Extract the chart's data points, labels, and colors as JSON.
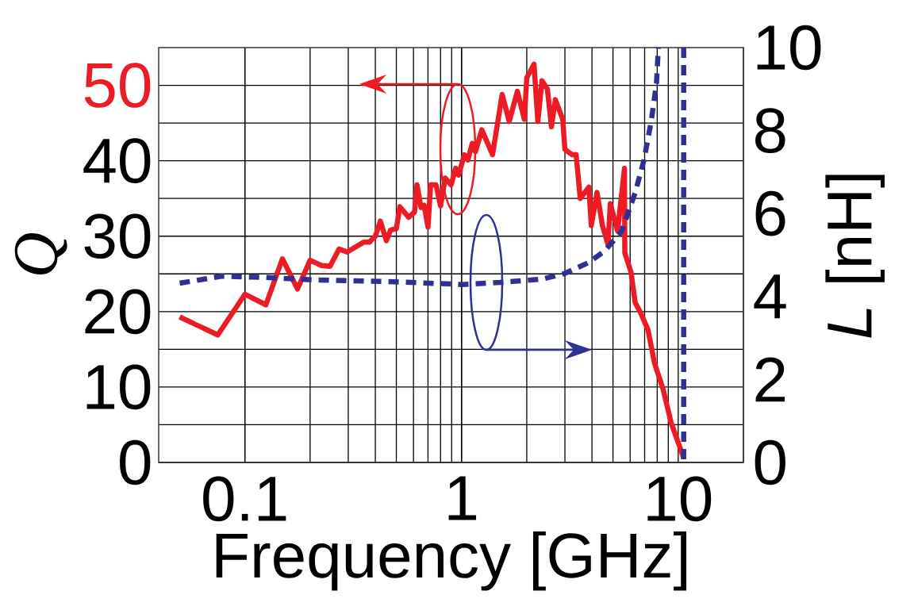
{
  "chart_data": {
    "type": "line",
    "xlabel": "Frequency [GHz]",
    "ylabel": "Q",
    "y2label": "*L* [nH]",
    "log": "x",
    "grid": true,
    "marker": "none",
    "xlim": [
      0.04,
      20
    ],
    "xticks": [
      0.1,
      1,
      10
    ],
    "ylim": [
      0,
      55
    ],
    "yticks": [
      0,
      {
        "value": 5,
        "label": null
      },
      10,
      {
        "value": 15,
        "label": null
      },
      20,
      {
        "value": 25,
        "label": null
      },
      30,
      {
        "value": 35,
        "label": null
      },
      40,
      {
        "value": 45,
        "label": null
      },
      50
    ],
    "y2lim": [
      0,
      10
    ],
    "y2ticks": [
      0,
      2,
      4,
      6,
      8,
      10
    ],
    "series": [
      {
        "color": "#ed1c24",
        "line_style": "solid",
        "x": [
          0.05,
          0.075,
          0.1,
          0.125,
          0.149,
          0.175,
          0.2,
          0.226,
          0.247,
          0.272,
          0.296,
          0.353,
          0.375,
          0.4,
          0.422,
          0.45,
          0.47,
          0.5,
          0.519,
          0.57,
          0.607,
          0.623,
          0.65,
          0.672,
          0.7,
          0.72,
          0.763,
          0.8,
          0.84,
          0.895,
          0.94,
          0.97,
          1.03,
          1.07,
          1.12,
          1.16,
          1.24,
          1.39,
          1.54,
          1.66,
          1.81,
          1.95,
          2.0,
          2.16,
          2.25,
          2.35,
          2.49,
          2.6,
          2.71,
          2.93,
          3.0,
          3.24,
          3.38,
          3.53,
          3.87,
          3.97,
          4.22,
          4.47,
          4.74,
          4.86,
          5.25,
          5.65,
          5.67,
          6.06,
          6.33,
          6.72,
          7.25,
          7.77,
          8.52,
          9.27,
          10.6
        ],
        "values": [
          19.3,
          16.9,
          22.3,
          20.9,
          27.0,
          23.0,
          26.8,
          26.1,
          26.0,
          28.3,
          27.9,
          29.2,
          29.2,
          30.0,
          32.0,
          29.4,
          30.8,
          31.0,
          33.9,
          32.5,
          33.2,
          36.8,
          33.8,
          34.1,
          31.2,
          36.8,
          36.8,
          34.0,
          37.7,
          36.8,
          39.0,
          38.1,
          40.8,
          40.1,
          42.3,
          41.2,
          44.1,
          40.8,
          48.8,
          45.2,
          49.2,
          45.5,
          51.0,
          52.8,
          45.2,
          50.6,
          49.5,
          44.5,
          48.1,
          45.5,
          41.5,
          40.8,
          40.8,
          35.0,
          36.5,
          31.4,
          35.8,
          31.4,
          28.9,
          34.3,
          30.7,
          39.0,
          27.8,
          25.2,
          21.2,
          19.8,
          17.6,
          13.2,
          9.7,
          5.3,
          0.6
        ]
      },
      {
        "color": "#2e3192",
        "line_style": "dashed",
        "axis": "y2",
        "x": [
          0.05,
          0.078,
          0.124,
          0.209,
          0.46,
          1.0,
          1.51,
          2.35,
          2.98,
          3.87,
          4.58,
          5.48,
          6.33,
          6.95,
          7.5,
          7.94,
          8.1,
          9.0,
          10.6,
          10.6
        ],
        "values": [
          4.32,
          4.49,
          4.46,
          4.4,
          4.36,
          4.29,
          4.34,
          4.42,
          4.55,
          4.82,
          5.1,
          5.57,
          6.5,
          7.29,
          8.21,
          9.14,
          10,
          null,
          10,
          0
        ]
      }
    ]
  }
}
